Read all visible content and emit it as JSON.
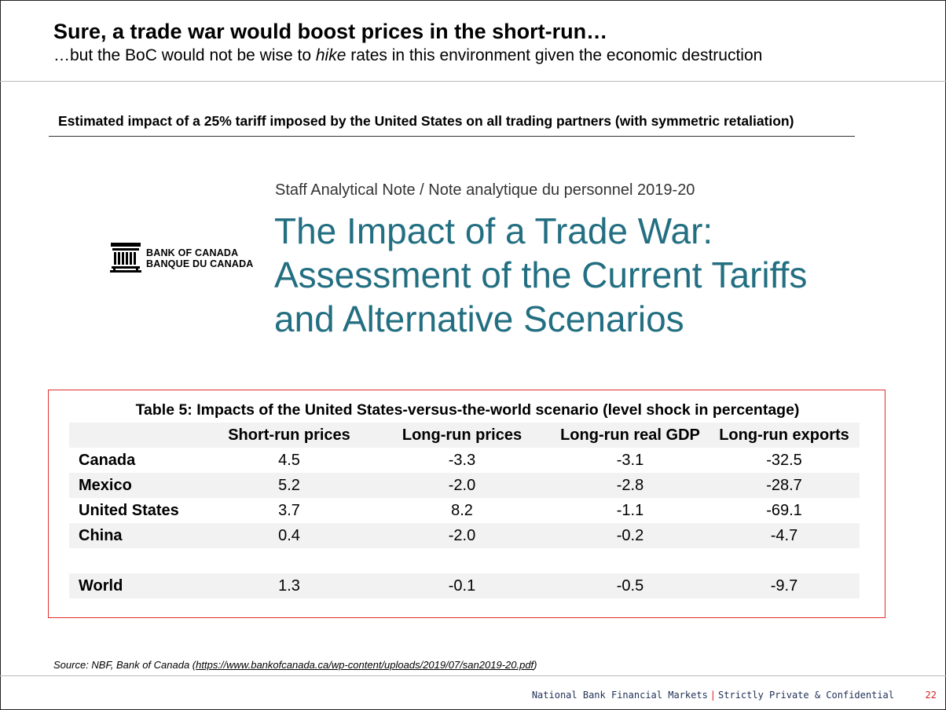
{
  "header": {
    "title": "Sure, a trade war would boost prices in the short-run…",
    "subtitle_before": "…but the BoC would not be wise to ",
    "subtitle_em": "hike",
    "subtitle_after": " rates in this environment given the economic destruction"
  },
  "caption": "Estimated impact of a 25% tariff imposed by the United States on all trading partners (with symmetric retaliation)",
  "note": {
    "logo_line1": "BANK OF CANADA",
    "logo_line2": "BANQUE DU CANADA",
    "series": "Staff Analytical Note / Note analytique du personnel 2019-20",
    "title_lines": [
      "The Impact of a Trade War:",
      "Assessment of the Current Tariffs",
      "and Alternative Scenarios"
    ]
  },
  "table": {
    "title": "Table 5: Impacts of the United States-versus-the-world scenario (level shock in percentage)",
    "columns": [
      "Short-run prices",
      "Long-run prices",
      "Long-run real GDP",
      "Long-run exports"
    ],
    "rows": [
      {
        "label": "Canada",
        "values": [
          "4.5",
          "-3.3",
          "-3.1",
          "-32.5"
        ]
      },
      {
        "label": "Mexico",
        "values": [
          "5.2",
          "-2.0",
          "-2.8",
          "-28.7"
        ]
      },
      {
        "label": "United States",
        "values": [
          "3.7",
          "8.2",
          "-1.1",
          "-69.1"
        ]
      },
      {
        "label": "China",
        "values": [
          "0.4",
          "-2.0",
          "-0.2",
          "-4.7"
        ]
      },
      {
        "label": "",
        "values": [
          "",
          "",
          "",
          ""
        ]
      },
      {
        "label": "World",
        "values": [
          "1.3",
          "-0.1",
          "-0.5",
          "-9.7"
        ]
      }
    ]
  },
  "source": {
    "prefix": "Source: NBF, Bank of Canada (",
    "link_text": "https://www.bankofcanada.ca/wp-content/uploads/2019/07/san2019-20.pdf",
    "suffix": ")"
  },
  "footer": {
    "company": "National Bank Financial Markets",
    "separator": "|",
    "confidential": "Strictly Private & Confidential",
    "page_number": "22"
  },
  "colors": {
    "note_title": "#236f82",
    "highlight_border": "#e03030",
    "row_shade": "#f2f2f2",
    "footer_text": "#1f2f55",
    "footer_accent": "#d82020"
  },
  "icons": [
    "bank-of-canada-building-icon"
  ]
}
